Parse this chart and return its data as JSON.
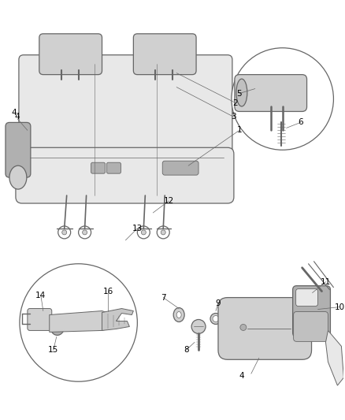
{
  "bg_color": "#ffffff",
  "line_color": "#666666",
  "label_color": "#000000",
  "label_fontsize": 7.5,
  "seat_fc": "#e8e8e8",
  "detail_fc": "#d0d0d0",
  "dark_fc": "#b0b0b0"
}
